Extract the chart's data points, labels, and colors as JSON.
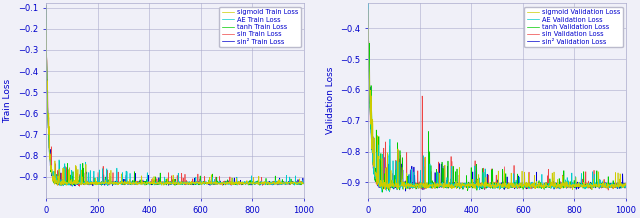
{
  "fig_width": 6.4,
  "fig_height": 2.18,
  "dpi": 100,
  "n_epochs": 1000,
  "colors": {
    "sigmoid": "#cccc00",
    "AE": "#00cccc",
    "tanh": "#00cc00",
    "sin": "#ee4444",
    "sin2": "#0000cc"
  },
  "train_ylabel": "Train Loss",
  "val_ylabel": "Validation Loss",
  "train_ylim": [
    -1.0,
    -0.08
  ],
  "val_ylim": [
    -0.95,
    -0.32
  ],
  "train_yticks": [
    -0.1,
    -0.2,
    -0.3,
    -0.4,
    -0.5,
    -0.6,
    -0.7,
    -0.8,
    -0.9
  ],
  "val_yticks": [
    -0.4,
    -0.5,
    -0.6,
    -0.7,
    -0.8,
    -0.9
  ],
  "xticks": [
    0,
    200,
    400,
    600,
    800,
    1000
  ],
  "train_legend": [
    "sigmoid Train Loss",
    "AE Train Loss",
    "tanh Train Loss",
    "sin Train Loss",
    "sin² Train Loss"
  ],
  "val_legend": [
    "sigmoid Validation Loss",
    "AE Validation Loss",
    "tanh Validation Loss",
    "sin Validation Loss",
    "sin² Validation Loss"
  ],
  "label_color": "#0000cc",
  "tick_color": "#0000cc",
  "grid_color": "#aaaacc",
  "background_color": "#f0f0f8"
}
